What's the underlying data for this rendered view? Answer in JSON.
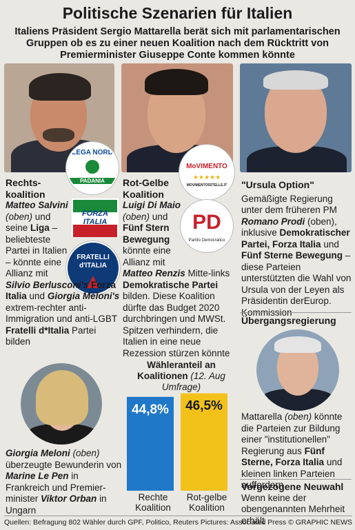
{
  "title": "Politische Szenarien für Italien",
  "subtitle": "Italiens Präsident Sergio Mattarella berät sich mit parlamentarischen Gruppen ob es zu einer neuen Koalition nach dem Rücktritt von Premierminister Giuseppe Conte kommen könnte",
  "col1": {
    "header1": "Rechts-",
    "header2": "koalition",
    "p1": "Matteo Salvini",
    "p2": "(oben)",
    "p3": "und seine",
    "p4": "Liga",
    "p5": "– beliebteste Partei in Italien – könnte eine Allianz mit",
    "p6": "Silvio Berlusconi's",
    "p7": "Forza Italia",
    "p8": "und",
    "p9": "Giorgia Meloni's",
    "p10": "extrem-rechter anti-Immigration und anti-LGBT",
    "p11": "Fratelli d*Italia",
    "p12": "Partei bilden"
  },
  "col2": {
    "header1": "Rot-Gelbe",
    "header2": "Koalition",
    "p1": "Luigi Di Maio",
    "p2": "(oben)",
    "p3": "und",
    "p4": "Fünf Stern Bewegung",
    "p5": "könnte eine Allianz mit",
    "p6": "Matteo Renzis",
    "p7": "Mitte-links",
    "p8": "Demokratische Partei",
    "p9": "bilden. Diese Koalition dürfte das Budget 2020 durchbringen und MWSt. Spitzen verhindern, die Italien in eine neue Rezession stürzen könnte"
  },
  "col3": {
    "header": "\"Ursula Option\"",
    "p1": "Gemäßigte Regierung unter dem früheren PM",
    "p2": "Romano Prodi",
    "p3": "(oben), inklusive",
    "p4": "Demokratischer Partei, Forza Italia",
    "p5": "und",
    "p6": "Fünf Sterne Bewegung",
    "p7": "– diese Parteien unterstützten die Wahl von Ursula von der Leyen als Präsidentin derEurop. Kommission"
  },
  "transition": {
    "header": "Übergangsregierung",
    "p1": "Mattarella",
    "p2": "(oben)",
    "p3": "könnte die Parteien zur Bildung einer \"institutionellen\" Regierung aus",
    "p4": "Fünf Sterne, Forza Italia",
    "p5": "und kleinen linken Parteien auffordern"
  },
  "early": {
    "header": "Vorgezogene Neuwahl",
    "text": "Wenn keine der obengenannten Mehrheit erhält"
  },
  "meloni": {
    "p1": "Giorgia Meloni",
    "p2": "(oben)",
    "p3": "überzeugte Bewunderin von",
    "p4": "Marine Le Pen",
    "p5": "in Frankreich und Premier-minister",
    "p6": "Viktor Orban",
    "p7": "in Ungarn"
  },
  "chart_title": "Wähleranteil an",
  "chart_title2": "Koalitionen",
  "chart_note": "(12. Aug Umfrage)",
  "chart_data": {
    "type": "bar",
    "categories": [
      "Rechte Koalition",
      "Rot-gelbe Koalition"
    ],
    "values": [
      44.8,
      46.5
    ],
    "value_labels": [
      "44,8%",
      "46,5%"
    ],
    "colors": [
      "#1f78c8",
      "#f2c21b"
    ],
    "ylim": [
      0,
      50
    ]
  },
  "bar_label_1a": "Rechte",
  "bar_label_1b": "Koalition",
  "bar_label_2a": "Rot-gelbe",
  "bar_label_2b": "Koalition",
  "logos": {
    "lega_top": "LEGA NORD",
    "lega_bottom": "PADANIA",
    "forza": "FORZA ITALIA",
    "fratelli": "FRATELLI d'ITALIA",
    "m5s": "MoVIMENTO",
    "m5s_sub": "MOVIMENTO5STELLE.IT",
    "pd": "PD",
    "pd_sub": "Partito Democratico"
  },
  "footer_left": "Quellen: Befragung 802 Wähler durch GPF, Politico, Reuters   Pictures: Associated Press",
  "footer_right": "© GRAPHIC NEWS"
}
